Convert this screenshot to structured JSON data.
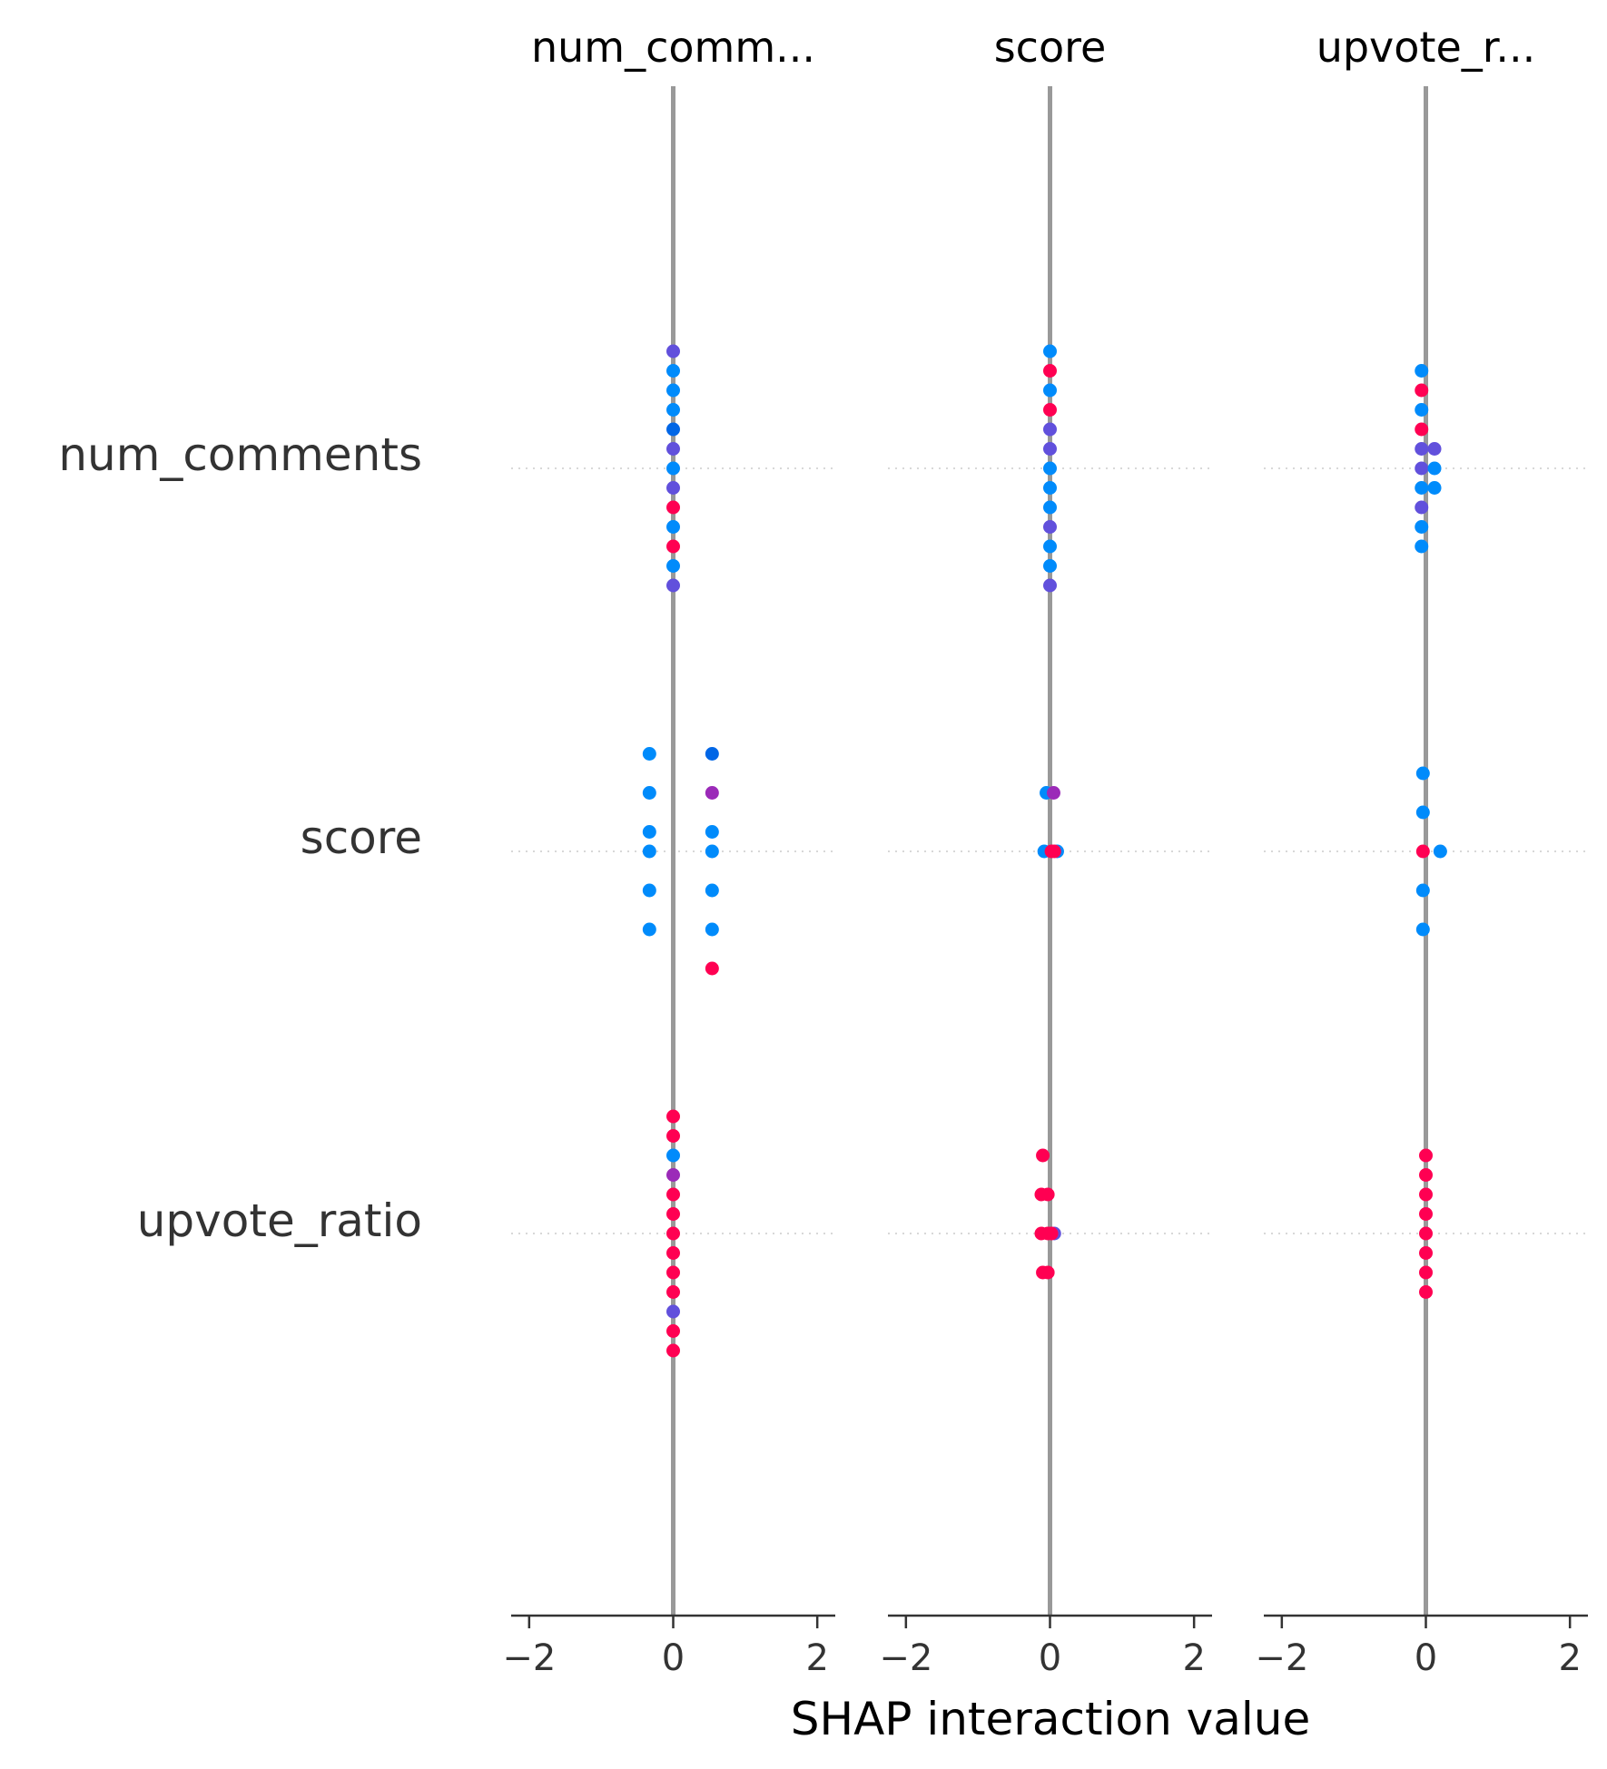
{
  "chart_data": {
    "type": "scatter",
    "xlabel": "SHAP interaction value",
    "xlim": [
      -2.25,
      2.25
    ],
    "xticks": [
      -2,
      0,
      2
    ],
    "xtick_labels": [
      "−2",
      "0",
      "2"
    ],
    "column_titles": [
      "num_comm...",
      "score",
      "upvote_r..."
    ],
    "row_labels": [
      "num_comments",
      "score",
      "upvote_ratio"
    ],
    "colors": {
      "blue": "#008bfb",
      "deep_blue": "#0066e6",
      "indigo": "#6150dc",
      "purple": "#9b2ab8",
      "red": "#ff0052",
      "zero_line": "#999999",
      "grid": "#cccccc",
      "axis": "#333333"
    },
    "panels": [
      {
        "title": "num_comm...",
        "rows": [
          {
            "feature": "num_comments",
            "points": [
              {
                "x": 0,
                "offset": 6,
                "c": "indigo"
              },
              {
                "x": 0,
                "offset": 5,
                "c": "blue"
              },
              {
                "x": 0,
                "offset": 4,
                "c": "blue"
              },
              {
                "x": 0,
                "offset": 3,
                "c": "blue"
              },
              {
                "x": 0,
                "offset": 2,
                "c": "deep_blue"
              },
              {
                "x": 0,
                "offset": 1,
                "c": "indigo"
              },
              {
                "x": 0,
                "offset": 0,
                "c": "blue"
              },
              {
                "x": 0,
                "offset": -1,
                "c": "indigo"
              },
              {
                "x": 0,
                "offset": -2,
                "c": "red"
              },
              {
                "x": 0,
                "offset": -3,
                "c": "blue"
              },
              {
                "x": 0,
                "offset": -4,
                "c": "red"
              },
              {
                "x": 0,
                "offset": -5,
                "c": "blue"
              },
              {
                "x": 0,
                "offset": -6,
                "c": "indigo"
              }
            ]
          },
          {
            "feature": "score",
            "points": [
              {
                "x": -0.33,
                "offset": 5,
                "c": "blue"
              },
              {
                "x": -0.33,
                "offset": 3,
                "c": "blue"
              },
              {
                "x": -0.33,
                "offset": 1,
                "c": "blue"
              },
              {
                "x": -0.33,
                "offset": 0,
                "c": "blue"
              },
              {
                "x": -0.33,
                "offset": -2,
                "c": "blue"
              },
              {
                "x": -0.33,
                "offset": -4,
                "c": "blue"
              },
              {
                "x": 0.54,
                "offset": 5,
                "c": "deep_blue"
              },
              {
                "x": 0.54,
                "offset": 3,
                "c": "purple"
              },
              {
                "x": 0.54,
                "offset": 1,
                "c": "blue"
              },
              {
                "x": 0.54,
                "offset": 0,
                "c": "blue"
              },
              {
                "x": 0.54,
                "offset": -2,
                "c": "blue"
              },
              {
                "x": 0.54,
                "offset": -4,
                "c": "blue"
              },
              {
                "x": 0.54,
                "offset": -6,
                "c": "red"
              }
            ]
          },
          {
            "feature": "upvote_ratio",
            "points": [
              {
                "x": 0,
                "offset": 6,
                "c": "red"
              },
              {
                "x": 0,
                "offset": 5,
                "c": "red"
              },
              {
                "x": 0,
                "offset": 4,
                "c": "blue"
              },
              {
                "x": 0,
                "offset": 3,
                "c": "purple"
              },
              {
                "x": 0,
                "offset": 2,
                "c": "red"
              },
              {
                "x": 0,
                "offset": 1,
                "c": "red"
              },
              {
                "x": 0,
                "offset": 0,
                "c": "red"
              },
              {
                "x": 0,
                "offset": -1,
                "c": "red"
              },
              {
                "x": 0,
                "offset": -2,
                "c": "red"
              },
              {
                "x": 0,
                "offset": -3,
                "c": "red"
              },
              {
                "x": 0,
                "offset": -4,
                "c": "indigo"
              },
              {
                "x": 0,
                "offset": -5,
                "c": "red"
              },
              {
                "x": 0,
                "offset": -6,
                "c": "red"
              }
            ]
          }
        ]
      },
      {
        "title": "score",
        "rows": [
          {
            "feature": "num_comments",
            "points": [
              {
                "x": 0,
                "offset": 6,
                "c": "blue"
              },
              {
                "x": 0,
                "offset": 5,
                "c": "red"
              },
              {
                "x": 0,
                "offset": 4,
                "c": "blue"
              },
              {
                "x": 0,
                "offset": 3,
                "c": "red"
              },
              {
                "x": 0,
                "offset": 2,
                "c": "indigo"
              },
              {
                "x": 0,
                "offset": 1,
                "c": "indigo"
              },
              {
                "x": 0,
                "offset": 0,
                "c": "blue"
              },
              {
                "x": 0,
                "offset": -1,
                "c": "blue"
              },
              {
                "x": 0,
                "offset": -2,
                "c": "blue"
              },
              {
                "x": 0,
                "offset": -3,
                "c": "indigo"
              },
              {
                "x": 0,
                "offset": -4,
                "c": "blue"
              },
              {
                "x": 0,
                "offset": -5,
                "c": "blue"
              },
              {
                "x": 0,
                "offset": -6,
                "c": "indigo"
              }
            ]
          },
          {
            "feature": "score",
            "points": [
              {
                "x": -0.05,
                "offset": 3,
                "c": "blue"
              },
              {
                "x": 0.05,
                "offset": 3,
                "c": "purple"
              },
              {
                "x": -0.08,
                "offset": 0,
                "c": "blue"
              },
              {
                "x": 0.02,
                "offset": 0,
                "c": "red"
              },
              {
                "x": 0.1,
                "offset": 0,
                "c": "blue"
              },
              {
                "x": 0.06,
                "offset": 0,
                "c": "red"
              }
            ]
          },
          {
            "feature": "upvote_ratio",
            "points": [
              {
                "x": -0.1,
                "offset": 4,
                "c": "red"
              },
              {
                "x": -0.12,
                "offset": 2,
                "c": "red"
              },
              {
                "x": -0.03,
                "offset": 2,
                "c": "red"
              },
              {
                "x": -0.12,
                "offset": 0,
                "c": "red"
              },
              {
                "x": -0.03,
                "offset": 0,
                "c": "red"
              },
              {
                "x": 0.06,
                "offset": 0,
                "c": "indigo"
              },
              {
                "x": 0.02,
                "offset": 0,
                "c": "red"
              },
              {
                "x": -0.1,
                "offset": -2,
                "c": "red"
              },
              {
                "x": -0.03,
                "offset": -2,
                "c": "red"
              }
            ]
          }
        ]
      },
      {
        "title": "upvote_r...",
        "rows": [
          {
            "feature": "num_comments",
            "points": [
              {
                "x": -0.06,
                "offset": 5,
                "c": "blue"
              },
              {
                "x": -0.06,
                "offset": 4,
                "c": "red"
              },
              {
                "x": -0.06,
                "offset": 3,
                "c": "blue"
              },
              {
                "x": -0.06,
                "offset": 2,
                "c": "red"
              },
              {
                "x": -0.06,
                "offset": 1,
                "c": "indigo"
              },
              {
                "x": 0.12,
                "offset": 1,
                "c": "indigo"
              },
              {
                "x": -0.06,
                "offset": 0,
                "c": "indigo"
              },
              {
                "x": 0.12,
                "offset": 0,
                "c": "blue"
              },
              {
                "x": -0.06,
                "offset": -1,
                "c": "blue"
              },
              {
                "x": 0.12,
                "offset": -1,
                "c": "blue"
              },
              {
                "x": -0.06,
                "offset": -2,
                "c": "indigo"
              },
              {
                "x": -0.06,
                "offset": -3,
                "c": "blue"
              },
              {
                "x": -0.06,
                "offset": -4,
                "c": "blue"
              }
            ]
          },
          {
            "feature": "score",
            "points": [
              {
                "x": -0.04,
                "offset": 4,
                "c": "blue"
              },
              {
                "x": -0.04,
                "offset": 2,
                "c": "blue"
              },
              {
                "x": -0.04,
                "offset": 0,
                "c": "red"
              },
              {
                "x": 0.2,
                "offset": 0,
                "c": "blue"
              },
              {
                "x": -0.04,
                "offset": -2,
                "c": "blue"
              },
              {
                "x": -0.04,
                "offset": -4,
                "c": "blue"
              }
            ]
          },
          {
            "feature": "upvote_ratio",
            "points": [
              {
                "x": 0,
                "offset": 4,
                "c": "red"
              },
              {
                "x": 0,
                "offset": 3,
                "c": "red"
              },
              {
                "x": 0,
                "offset": 2,
                "c": "red"
              },
              {
                "x": 0,
                "offset": 1,
                "c": "red"
              },
              {
                "x": 0,
                "offset": 0,
                "c": "red"
              },
              {
                "x": 0,
                "offset": -1,
                "c": "red"
              },
              {
                "x": 0,
                "offset": -2,
                "c": "red"
              },
              {
                "x": 0,
                "offset": -3,
                "c": "red"
              }
            ]
          }
        ]
      }
    ]
  }
}
